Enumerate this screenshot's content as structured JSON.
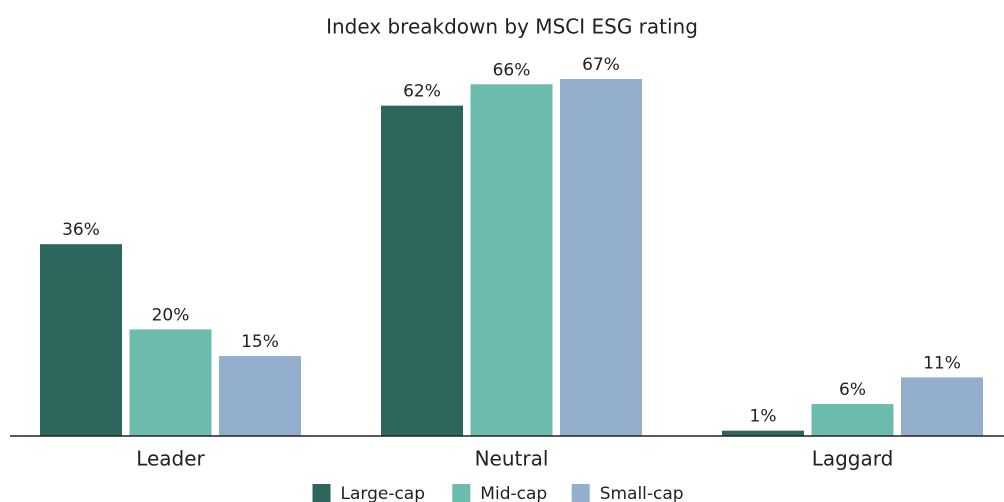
{
  "chart_data": {
    "type": "bar",
    "title": "Index breakdown by MSCI ESG rating",
    "categories": [
      "Leader",
      "Neutral",
      "Laggard"
    ],
    "series": [
      {
        "name": "Large-cap",
        "color": "#2d665c",
        "values": [
          36,
          62,
          1
        ],
        "value_labels": [
          "36%",
          "62%",
          "1%"
        ]
      },
      {
        "name": "Mid-cap",
        "color": "#6bbcad",
        "values": [
          20,
          66,
          6
        ],
        "value_labels": [
          "20%",
          "66%",
          "6%"
        ]
      },
      {
        "name": "Small-cap",
        "color": "#93afcd",
        "values": [
          15,
          67,
          11
        ],
        "value_labels": [
          "15%",
          "67%",
          "11%"
        ]
      }
    ],
    "ylim": [
      0,
      70
    ],
    "legend": "bottom"
  }
}
